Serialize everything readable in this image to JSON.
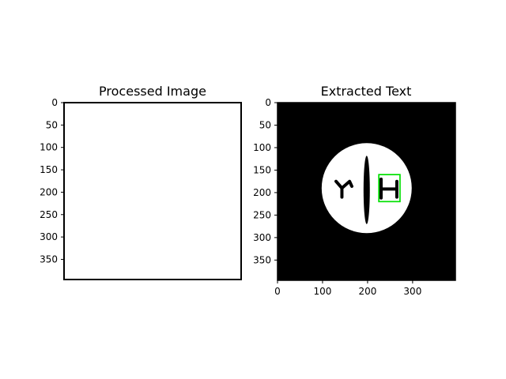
{
  "figure": {
    "background": "#ffffff"
  },
  "chart_data": [
    {
      "type": "image",
      "title": "Processed Image",
      "image_content": "blank white",
      "image_size": [
        395,
        395
      ],
      "xaxis_visible": false,
      "ylim": [
        0,
        395
      ],
      "yticks": [
        0,
        50,
        100,
        150,
        200,
        250,
        300,
        350
      ],
      "ytick_labels": [
        "0",
        "50",
        "100",
        "150",
        "200",
        "250",
        "300",
        "350"
      ],
      "colors": {
        "background": "#ffffff",
        "frame": "#000000"
      }
    },
    {
      "type": "image",
      "title": "Extracted Text",
      "image_size": [
        395,
        395
      ],
      "xlim": [
        0,
        395
      ],
      "ylim": [
        0,
        395
      ],
      "xticks": [
        0,
        100,
        200,
        300
      ],
      "xtick_labels": [
        "0",
        "100",
        "200",
        "300"
      ],
      "yticks": [
        0,
        50,
        100,
        150,
        200,
        250,
        300,
        350
      ],
      "ytick_labels": [
        "0",
        "50",
        "100",
        "150",
        "200",
        "250",
        "300",
        "350"
      ],
      "circle": {
        "cx": 198,
        "cy": 190,
        "r": 100,
        "color": "#ffffff"
      },
      "glyph_y": {
        "stroke_left": [
          [
            130,
            175
          ],
          [
            143,
            190
          ],
          [
            143,
            210
          ]
        ],
        "stroke_right": [
          [
            143,
            190
          ],
          [
            160,
            175
          ],
          [
            165,
            186
          ]
        ]
      },
      "vertical_bar": {
        "x": 198,
        "y_top": 118,
        "y_bottom": 270,
        "half_width": 7
      },
      "glyph_h": {
        "left_stem": [
          [
            230,
            170
          ],
          [
            230,
            212
          ]
        ],
        "crossbar": [
          [
            232,
            192
          ],
          [
            265,
            192
          ]
        ],
        "right_stem": [
          [
            265,
            175
          ],
          [
            265,
            210
          ]
        ]
      },
      "detection_box": {
        "x0": 225,
        "y0": 160,
        "x1": 272,
        "y1": 220,
        "color": "#00e000"
      },
      "colors": {
        "background": "#000000",
        "foreground": "#ffffff",
        "ink": "#000000"
      }
    }
  ]
}
